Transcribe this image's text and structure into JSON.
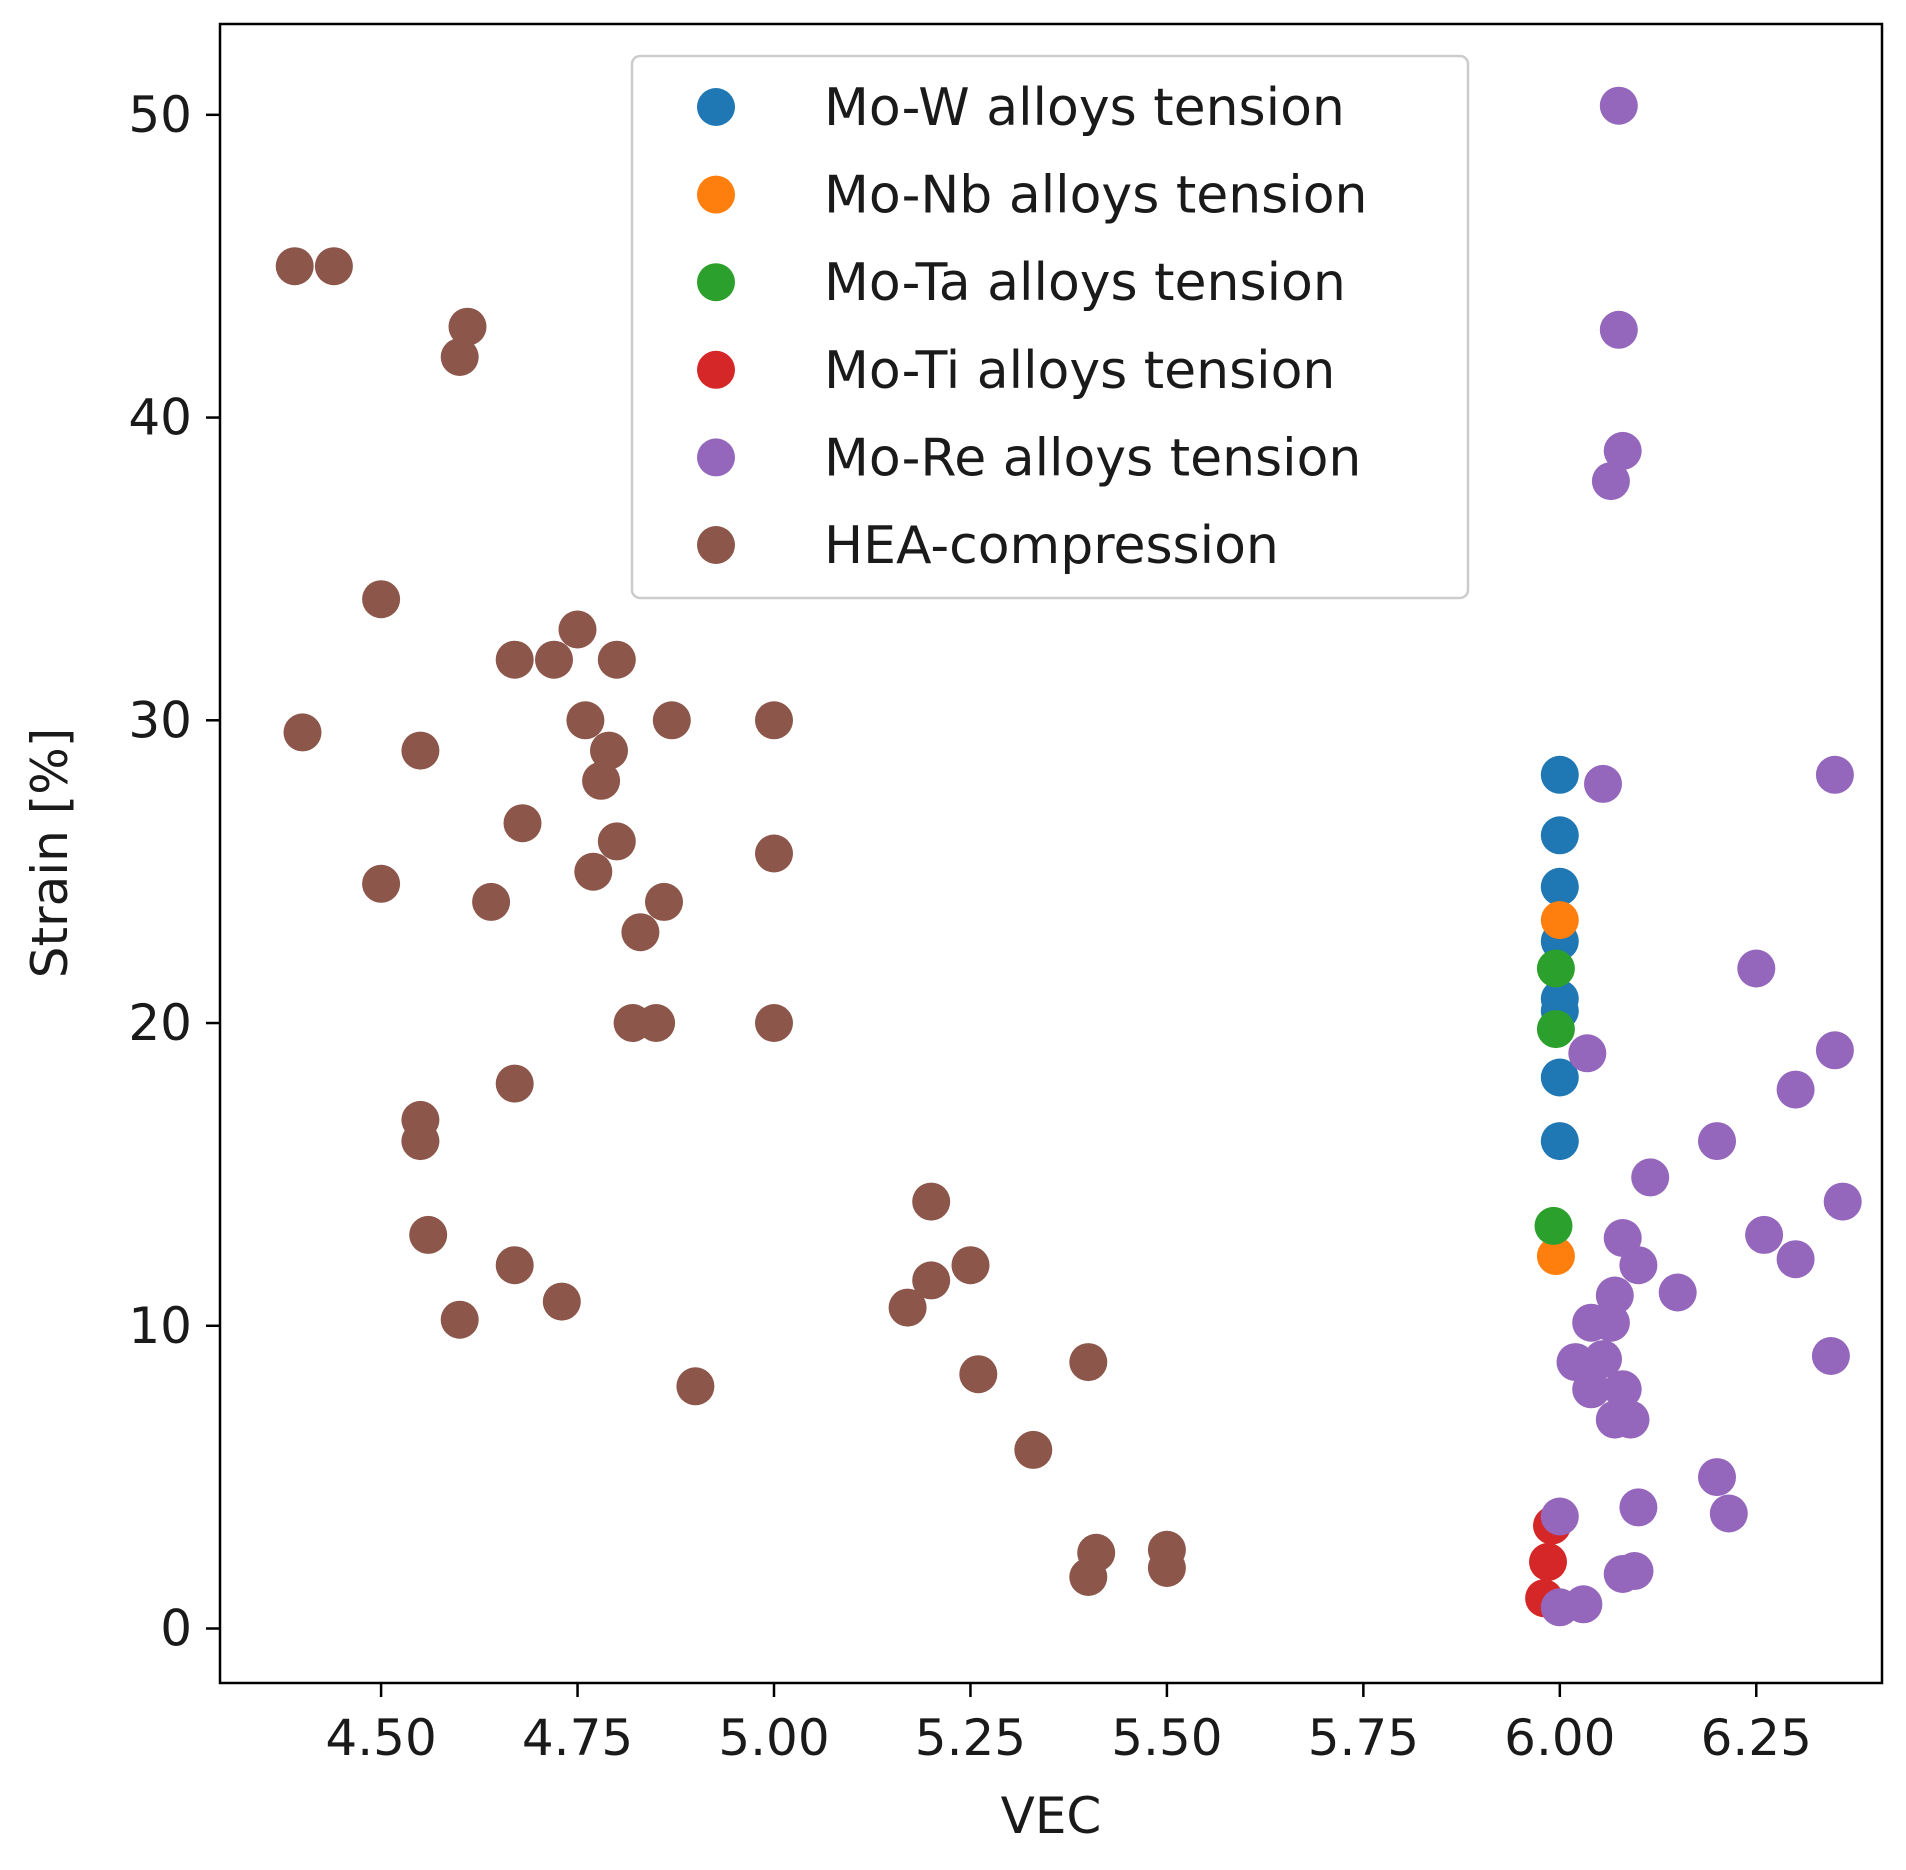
{
  "chart_data": {
    "type": "scatter",
    "title": "",
    "xlabel": "VEC",
    "ylabel": "Strain [%]",
    "xlim": [
      4.295,
      6.41
    ],
    "ylim": [
      -1.8,
      53
    ],
    "xticks": [
      4.5,
      4.75,
      5.0,
      5.25,
      5.5,
      5.75,
      6.0,
      6.25
    ],
    "xtick_labels": [
      "4.50",
      "4.75",
      "5.00",
      "5.25",
      "5.50",
      "5.75",
      "6.00",
      "6.25"
    ],
    "yticks": [
      0,
      10,
      20,
      30,
      40,
      50
    ],
    "ytick_labels": [
      "0",
      "10",
      "20",
      "30",
      "40",
      "50"
    ],
    "grid": false,
    "legend_position": "top-center",
    "series": [
      {
        "name": "Mo-W alloys tension",
        "color": "#1f77b4",
        "points": [
          [
            6.0,
            28.2
          ],
          [
            6.0,
            26.2
          ],
          [
            6.0,
            24.5
          ],
          [
            6.0,
            22.7
          ],
          [
            6.0,
            20.8
          ],
          [
            6.0,
            20.4
          ],
          [
            6.0,
            18.2
          ],
          [
            6.0,
            16.1
          ]
        ]
      },
      {
        "name": "Mo-Nb alloys tension",
        "color": "#ff7f0e",
        "points": [
          [
            6.0,
            23.4
          ],
          [
            5.995,
            12.3
          ]
        ]
      },
      {
        "name": "Mo-Ta alloys tension",
        "color": "#2ca02c",
        "points": [
          [
            5.995,
            21.8
          ],
          [
            5.995,
            19.8
          ],
          [
            5.992,
            13.3
          ]
        ]
      },
      {
        "name": "Mo-Ti alloys tension",
        "color": "#d62728",
        "points": [
          [
            5.99,
            3.4
          ],
          [
            5.985,
            2.2
          ],
          [
            5.98,
            1.0
          ]
        ]
      },
      {
        "name": "Mo-Re alloys tension",
        "color": "#9467bd",
        "points": [
          [
            6.075,
            50.3
          ],
          [
            6.075,
            42.9
          ],
          [
            6.08,
            38.9
          ],
          [
            6.065,
            37.9
          ],
          [
            6.055,
            27.9
          ],
          [
            6.35,
            28.2
          ],
          [
            6.25,
            21.8
          ],
          [
            6.035,
            19.0
          ],
          [
            6.35,
            19.1
          ],
          [
            6.3,
            17.8
          ],
          [
            6.2,
            16.1
          ],
          [
            6.115,
            14.9
          ],
          [
            6.36,
            14.1
          ],
          [
            6.08,
            12.9
          ],
          [
            6.26,
            13.0
          ],
          [
            6.1,
            12.0
          ],
          [
            6.3,
            12.2
          ],
          [
            6.15,
            11.1
          ],
          [
            6.07,
            11.0
          ],
          [
            6.04,
            10.1
          ],
          [
            6.065,
            10.1
          ],
          [
            6.02,
            8.8
          ],
          [
            6.055,
            8.9
          ],
          [
            6.04,
            7.9
          ],
          [
            6.08,
            7.9
          ],
          [
            6.07,
            6.9
          ],
          [
            6.09,
            6.9
          ],
          [
            6.345,
            9.0
          ],
          [
            6.2,
            5.0
          ],
          [
            6.215,
            3.8
          ],
          [
            6.1,
            4.0
          ],
          [
            6.0,
            3.7
          ],
          [
            6.08,
            1.8
          ],
          [
            6.095,
            1.9
          ],
          [
            6.03,
            0.8
          ],
          [
            6.0,
            0.7
          ]
        ]
      },
      {
        "name": "HEA-compression",
        "color": "#8c564b",
        "points": [
          [
            4.39,
            45.0
          ],
          [
            4.44,
            45.0
          ],
          [
            4.61,
            43.0
          ],
          [
            4.6,
            42.0
          ],
          [
            4.5,
            34.0
          ],
          [
            4.75,
            33.0
          ],
          [
            4.67,
            32.0
          ],
          [
            4.72,
            32.0
          ],
          [
            4.8,
            32.0
          ],
          [
            4.76,
            30.0
          ],
          [
            4.87,
            30.0
          ],
          [
            5.0,
            30.0
          ],
          [
            4.4,
            29.6
          ],
          [
            4.55,
            29.0
          ],
          [
            4.79,
            29.0
          ],
          [
            4.78,
            28.0
          ],
          [
            4.68,
            26.6
          ],
          [
            4.8,
            26.0
          ],
          [
            5.0,
            25.6
          ],
          [
            4.77,
            25.0
          ],
          [
            4.5,
            24.6
          ],
          [
            4.64,
            24.0
          ],
          [
            4.86,
            24.0
          ],
          [
            4.83,
            23.0
          ],
          [
            4.82,
            20.0
          ],
          [
            4.85,
            20.0
          ],
          [
            5.0,
            20.0
          ],
          [
            4.67,
            18.0
          ],
          [
            4.55,
            16.8
          ],
          [
            4.55,
            16.1
          ],
          [
            4.56,
            13.0
          ],
          [
            4.67,
            12.0
          ],
          [
            4.73,
            10.8
          ],
          [
            4.6,
            10.2
          ],
          [
            4.9,
            8.0
          ],
          [
            5.2,
            14.1
          ],
          [
            5.2,
            11.5
          ],
          [
            5.25,
            12.0
          ],
          [
            5.17,
            10.6
          ],
          [
            5.26,
            8.4
          ],
          [
            5.4,
            8.8
          ],
          [
            5.33,
            5.9
          ],
          [
            5.41,
            2.5
          ],
          [
            5.4,
            1.7
          ],
          [
            5.5,
            2.6
          ],
          [
            5.5,
            2.0
          ]
        ]
      }
    ]
  }
}
